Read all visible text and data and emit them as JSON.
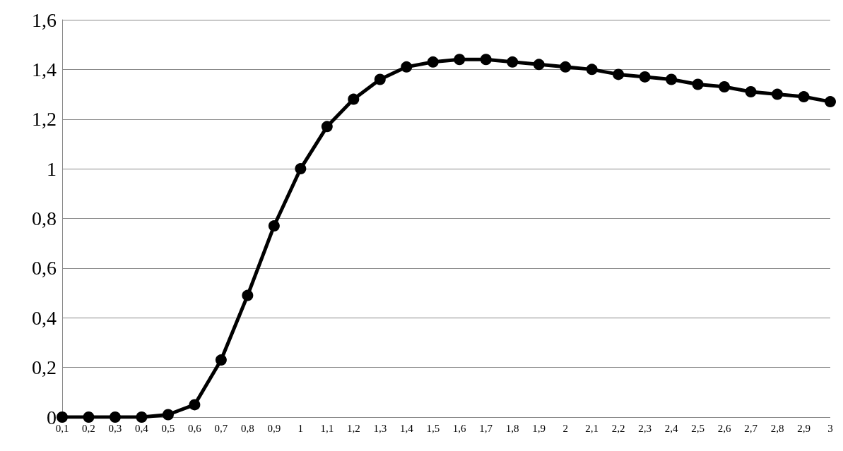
{
  "chart_data": {
    "type": "line",
    "categories": [
      "0,1",
      "0,2",
      "0,3",
      "0,4",
      "0,5",
      "0,6",
      "0,7",
      "0,8",
      "0,9",
      "1",
      "1,1",
      "1,2",
      "1,3",
      "1,4",
      "1,5",
      "1,6",
      "1,7",
      "1,8",
      "1,9",
      "2",
      "2,1",
      "2,2",
      "2,3",
      "2,4",
      "2,5",
      "2,6",
      "2,7",
      "2,8",
      "2,9",
      "3"
    ],
    "series": [
      {
        "color": "#000000",
        "values": [
          0,
          0,
          0,
          0,
          0.01,
          0.05,
          0.23,
          0.49,
          0.77,
          1.0,
          1.17,
          1.28,
          1.36,
          1.41,
          1.43,
          1.44,
          1.44,
          1.43,
          1.42,
          1.41,
          1.4,
          1.38,
          1.37,
          1.36,
          1.34,
          1.33,
          1.31,
          1.3,
          1.29,
          1.27
        ]
      }
    ],
    "ylim": [
      0,
      1.6
    ],
    "yticks": [
      0,
      {
        "value": 0.2,
        "label": "0,2"
      },
      {
        "value": 0.4,
        "label": "0,4"
      },
      {
        "value": 0.6,
        "label": "0,6"
      },
      {
        "value": 0.8,
        "label": "0,8"
      },
      1,
      {
        "value": 1.2,
        "label": "1,2"
      },
      {
        "value": 1.4,
        "label": "1,4"
      },
      {
        "value": 1.6,
        "label": "1,6"
      }
    ],
    "grid": "y",
    "marker": "circle",
    "line_style": "solid"
  }
}
